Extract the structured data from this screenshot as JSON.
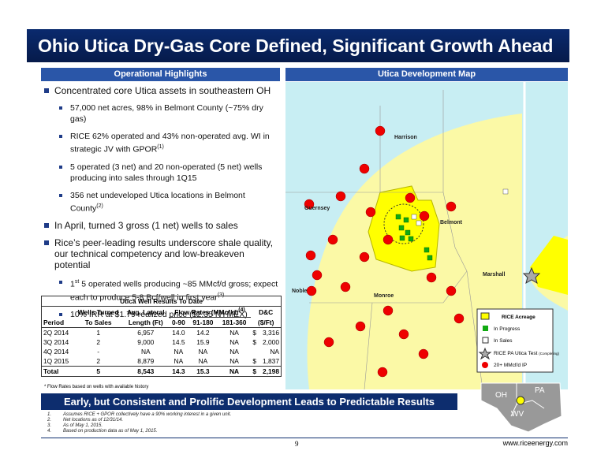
{
  "header": {
    "title": "Ohio Utica Dry-Gas Core Defined, Significant Growth Ahead"
  },
  "left_section": {
    "heading": "Operational Highlights",
    "bullets": [
      {
        "level": 1,
        "parts": [
          {
            "text": "Concentrated core Utica assets in southeastern OH"
          }
        ]
      },
      {
        "level": 2,
        "parts": [
          {
            "text": "57,000 net acres, 98% in Belmont County (~75% dry gas)"
          }
        ]
      },
      {
        "level": 2,
        "parts": [
          {
            "text": "RICE 62% operated and 43% non-operated avg. WI in strategic JV with GPOR"
          },
          {
            "sup": "(1)"
          }
        ]
      },
      {
        "level": 2,
        "parts": [
          {
            "text": "5 operated (3 net) and 20 non-operated (5 net) wells producing into sales through 1Q15"
          }
        ]
      },
      {
        "level": 2,
        "parts": [
          {
            "text": "356 net undeveloped Utica locations in Belmont County"
          },
          {
            "sup": "(2)"
          }
        ]
      },
      {
        "level": 1,
        "parts": [
          {
            "text": "In April, turned 3 gross (1 net) wells to sales"
          }
        ]
      },
      {
        "level": 1,
        "parts": [
          {
            "text": "Rice’s peer-leading results underscore shale quality, our technical competency and low-breakeven potential"
          }
        ]
      },
      {
        "level": 2,
        "parts": [
          {
            "text": "1"
          },
          {
            "sup": "st"
          },
          {
            "text": " 5 operated wells producing ~85 MMcf/d gross; expect each to produce 5-8 Bcf/well in first year"
          },
          {
            "sup": "(3)"
          }
        ]
      },
      {
        "level": 2,
        "parts": [
          {
            "text": "10% IRR at $1.79 realized price ($2.35 NYMEX)"
          }
        ]
      }
    ]
  },
  "table": {
    "title": "Utica Well Results To Date",
    "header_top": [
      "Wells Turned",
      "Avg. Lateral",
      "Flow Rates (MMcf/d)",
      "D&C"
    ],
    "header_top_sup": "(4)",
    "header_bottom": [
      "Period",
      "To Sales",
      "Length (Ft)",
      "0-90",
      "91-180",
      "181-360",
      "($/Ft)"
    ],
    "rows": [
      [
        "2Q 2014",
        "1",
        "6,957",
        "14.0",
        "14.2",
        "NA",
        "$",
        "3,316"
      ],
      [
        "3Q 2014",
        "2",
        "9,000",
        "14.5",
        "15.9",
        "NA",
        "$",
        "2,000"
      ],
      [
        "4Q 2014",
        "-",
        "NA",
        "NA",
        "NA",
        "NA",
        "",
        "NA"
      ],
      [
        "1Q 2015",
        "2",
        "8,879",
        "NA",
        "NA",
        "NA",
        "$",
        "1,837"
      ]
    ],
    "total": [
      "Total",
      "5",
      "8,543",
      "14.3",
      "15.3",
      "NA",
      "$",
      "2,198"
    ],
    "note": "* Flow Rates based on wells with available history"
  },
  "map": {
    "heading": "Utica Development Map",
    "counties": [
      "Harrison",
      "Guernsey",
      "Belmont",
      "Noble",
      "Monroe",
      "Marshall"
    ],
    "legend": {
      "title": "RICE Acreage",
      "items": [
        "In Progress",
        "In Sales",
        "RICE PA Utica Test",
        "20+ MMcf/d IP"
      ],
      "note": "(Completing)"
    },
    "inset": [
      "OH",
      "PA",
      "WV"
    ]
  },
  "banner": "Early, but Consistent and Prolific Development Leads to Predictable Results",
  "footnotes": [
    [
      "1.",
      "Assumes RICE + GPOR collectively have a 90% working interest in a given unit."
    ],
    [
      "2.",
      "Net locations as of 12/31/14."
    ],
    [
      "3.",
      "As of May 1, 2015."
    ],
    [
      "4.",
      "Based on production data as of May 1, 2015."
    ]
  ],
  "footer": {
    "page": "9",
    "website": "www.riceenergy.com"
  }
}
